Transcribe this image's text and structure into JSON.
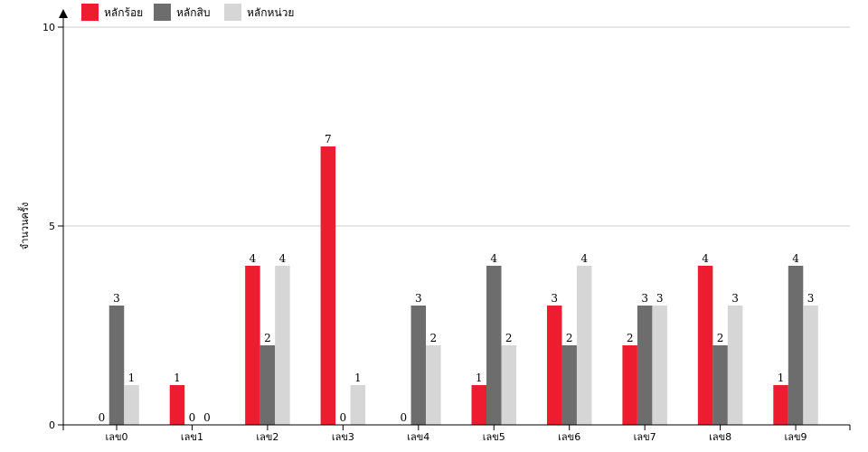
{
  "chart_data": {
    "type": "bar",
    "title": "",
    "xlabel": "",
    "ylabel": "จำนวนครั้ง",
    "ylim": [
      0,
      10
    ],
    "yticks": [
      0,
      5,
      10
    ],
    "grid": true,
    "legend_position": "top-left",
    "categories": [
      "เลข0",
      "เลข1",
      "เลข2",
      "เลข3",
      "เลข4",
      "เลข5",
      "เลข6",
      "เลข7",
      "เลข8",
      "เลข9"
    ],
    "series": [
      {
        "name": "หลักร้อย",
        "color": "#ed1c2e",
        "values": [
          0,
          1,
          4,
          7,
          0,
          1,
          3,
          2,
          4,
          1
        ]
      },
      {
        "name": "หลักสิบ",
        "color": "#6d6d6d",
        "values": [
          3,
          0,
          2,
          0,
          3,
          4,
          2,
          3,
          2,
          4
        ]
      },
      {
        "name": "หลักหน่วย",
        "color": "#d6d6d6",
        "values": [
          1,
          0,
          4,
          1,
          2,
          2,
          4,
          3,
          3,
          3
        ]
      }
    ]
  }
}
